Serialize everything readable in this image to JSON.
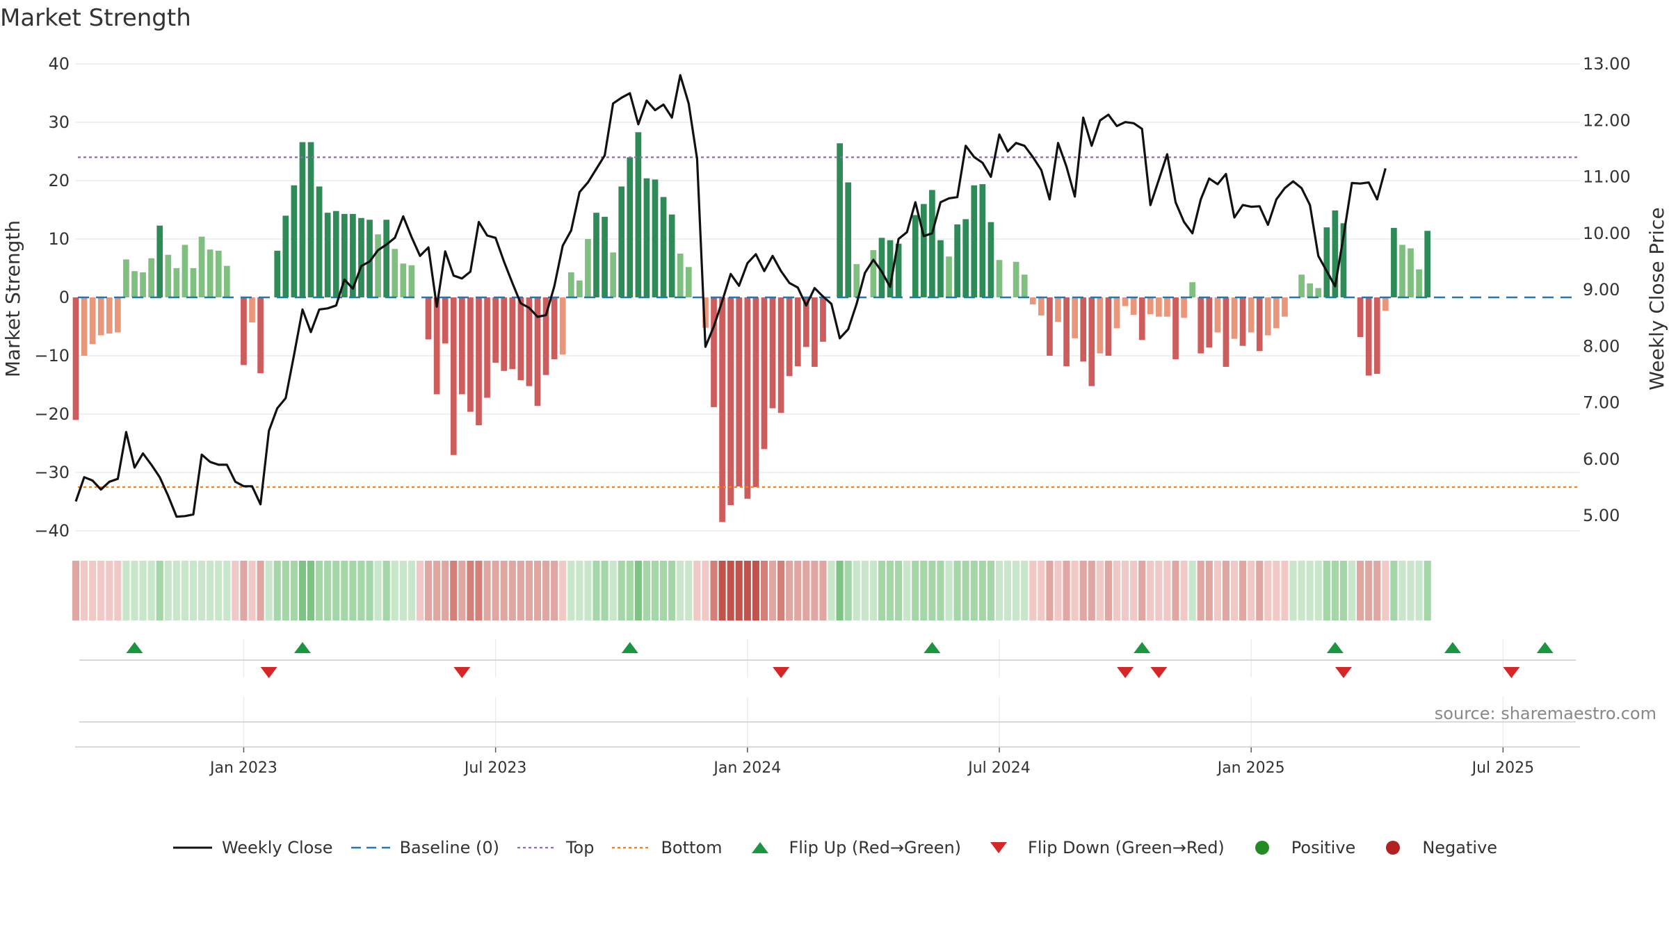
{
  "title": "Market Strength",
  "source": "source: sharemaestro.com",
  "colors": {
    "close": "#111111",
    "baseline": "#1f77b4",
    "top": "#9467bd",
    "bottom": "#ff7f0e",
    "strong_green": "#2e8b57",
    "light_green": "#7fbf7f",
    "strong_red": "#cd5c5c",
    "light_red": "#e9967a",
    "flip_up": "#1a9641",
    "flip_down": "#d62728",
    "positive": "#228b22",
    "negative": "#b22222"
  },
  "legend": [
    {
      "label": "Weekly Close",
      "kind": "line"
    },
    {
      "label": "Baseline (0)",
      "kind": "dash"
    },
    {
      "label": "Top",
      "kind": "dotted-purple"
    },
    {
      "label": "Bottom",
      "kind": "dotted-orange"
    },
    {
      "label": "Flip Up (Red→Green)",
      "kind": "tri-up"
    },
    {
      "label": "Flip Down (Green→Red)",
      "kind": "tri-down"
    },
    {
      "label": "Positive",
      "kind": "dot-green"
    },
    {
      "label": "Negative",
      "kind": "dot-red"
    }
  ],
  "chart_data": {
    "type": "bar",
    "title": "Market Strength",
    "ylabel": "Market Strength",
    "y2label": "Weekly Close Price",
    "ylim": [
      -40,
      40
    ],
    "y2lim": [
      5.0,
      13.0
    ],
    "yticks": [
      "40",
      "30",
      "20",
      "10",
      "0",
      "−10",
      "−20",
      "−30",
      "−40"
    ],
    "y2ticks": [
      "13.00",
      "12.00",
      "11.00",
      "10.00",
      "9.00",
      "8.00",
      "7.00",
      "6.00",
      "5.00"
    ],
    "xticks": [
      "Jan 2023",
      "Jul 2023",
      "Jan 2024",
      "Jul 2024",
      "Jan 2025",
      "Jul 2025"
    ],
    "xtick_weeks": [
      20,
      50,
      80,
      110,
      140,
      170
    ],
    "weeks": 180,
    "top_line": 24,
    "bottom_line": -32.5,
    "baseline": 0,
    "strength": [
      -21,
      -10,
      -8,
      -6.5,
      -6.2,
      -6,
      6.5,
      4.5,
      4.3,
      6.7,
      12.3,
      7.3,
      5,
      9,
      5,
      10.4,
      8.2,
      8,
      5.4,
      0,
      -11.6,
      -4.3,
      -13,
      0,
      8,
      14,
      19.2,
      26.6,
      26.6,
      19,
      14.5,
      14.8,
      14.3,
      14.3,
      13.6,
      13.3,
      10.8,
      13.3,
      8.3,
      5.8,
      5.5,
      0,
      -7.2,
      -16.6,
      -7.9,
      -27,
      -16.6,
      -19.6,
      -21.9,
      -17.2,
      -11.2,
      -12.6,
      -12.3,
      -14.2,
      -15.2,
      -18.6,
      -13.3,
      -10.6,
      -9.8,
      4.3,
      2.9,
      10,
      14.5,
      13.8,
      7.7,
      19,
      24,
      28.3,
      20.4,
      20.2,
      17.2,
      14.2,
      7.5,
      5.2,
      0,
      -5.2,
      -18.8,
      -38.5,
      -35.6,
      -32.4,
      -34.5,
      -32.5,
      -26,
      -19,
      -19.8,
      -13.5,
      -11.8,
      -8.5,
      -11.9,
      -7.6,
      0,
      26.4,
      19.7,
      5.7,
      0,
      8.1,
      10.2,
      9.8,
      9.2,
      0,
      14.1,
      16,
      18.4,
      9.8,
      7,
      12.5,
      13.4,
      19.2,
      19.4,
      12.9,
      6.4,
      0,
      6.1,
      3.9,
      -1.2,
      -3.1,
      -10,
      -4.2,
      -11.8,
      -7,
      -11,
      -15.2,
      -9.6,
      -10,
      -5.3,
      -1.5,
      -3,
      -7.3,
      -2.9,
      -3.3,
      -3.3,
      -10.6,
      -3.5,
      2.6,
      -9.6,
      -8.6,
      -6,
      -11.9,
      -7.1,
      -8.3,
      -6,
      -9.2,
      -6.5,
      -5.3,
      -3.3,
      0,
      3.9,
      2.4,
      1.6,
      12,
      14.9,
      12.7,
      0,
      -6.8,
      -13.4,
      -13.1,
      -2.3,
      11.9,
      9,
      8.4,
      4.8,
      11.4
    ],
    "close": [
      5.25,
      5.68,
      5.62,
      5.46,
      5.6,
      5.65,
      6.48,
      5.85,
      6.1,
      5.9,
      5.68,
      5.35,
      4.98,
      4.99,
      5.02,
      6.08,
      5.95,
      5.9,
      5.9,
      5.6,
      5.52,
      5.52,
      5.2,
      6.5,
      6.9,
      7.08,
      7.85,
      8.65,
      8.25,
      8.65,
      8.67,
      8.72,
      9.18,
      9.02,
      9.42,
      9.5,
      9.7,
      9.8,
      9.92,
      10.3,
      9.93,
      9.6,
      9.75,
      8.7,
      9.68,
      9.25,
      9.2,
      9.32,
      10.2,
      9.96,
      9.92,
      9.5,
      9.12,
      8.76,
      8.68,
      8.52,
      8.55,
      9.06,
      9.78,
      10.05,
      10.73,
      10.9,
      11.14,
      11.38,
      12.3,
      12.4,
      12.48,
      11.93,
      12.35,
      12.18,
      12.28,
      12.05,
      12.8,
      12.3,
      11.32,
      7.99,
      8.35,
      8.8,
      9.28,
      9.07,
      9.47,
      9.63,
      9.33,
      9.6,
      9.33,
      9.12,
      9.04,
      8.72,
      9.03,
      8.88,
      8.75,
      8.14,
      8.3,
      8.75,
      9.3,
      9.53,
      9.32,
      9.05,
      9.9,
      10.02,
      10.55,
      9.95,
      10,
      10.55,
      10.62,
      10.64,
      11.55,
      11.35,
      11.25,
      11.0,
      11.75,
      11.45,
      11.6,
      11.55,
      11.35,
      11.12,
      10.6,
      11.6,
      11.18,
      10.65,
      12.05,
      11.55,
      12.0,
      12.1,
      11.9,
      11.97,
      11.95,
      11.85,
      10.5,
      10.95,
      11.4,
      10.55,
      10.2,
      10.0,
      10.6,
      10.97,
      10.87,
      11.05,
      10.28,
      10.5,
      10.47,
      10.48,
      10.15,
      10.6,
      10.8,
      10.92,
      10.8,
      10.5,
      9.6,
      9.33,
      9.06,
      9.95,
      10.89,
      10.88,
      10.9,
      10.6,
      11.15
    ],
    "heat": [
      -2,
      -1,
      -1,
      -1,
      -1,
      -1,
      1,
      1,
      1,
      1,
      2,
      1,
      1,
      1,
      1,
      1,
      1,
      1,
      1,
      -1,
      -2,
      -1,
      -2,
      1,
      2,
      2,
      2,
      3,
      3,
      2,
      2,
      2,
      2,
      2,
      2,
      2,
      1,
      2,
      1,
      1,
      1,
      -1,
      -2,
      -2,
      -2,
      -3,
      -2,
      -3,
      -3,
      -2,
      -2,
      -2,
      -2,
      -2,
      -2,
      -2,
      -2,
      -2,
      -1,
      1,
      1,
      1,
      2,
      2,
      1,
      2,
      2,
      3,
      2,
      2,
      2,
      2,
      1,
      1,
      -1,
      -1,
      -3,
      -4,
      -4,
      -4,
      -4,
      -4,
      -3,
      -2,
      -3,
      -2,
      -2,
      -2,
      -2,
      -2,
      1,
      3,
      2,
      1,
      1,
      1,
      2,
      2,
      2,
      1,
      2,
      2,
      2,
      2,
      1,
      2,
      2,
      2,
      2,
      2,
      1,
      1,
      1,
      1,
      -1,
      -1,
      -2,
      -1,
      -2,
      -1,
      -2,
      -2,
      -1,
      -2,
      -1,
      -1,
      -1,
      -2,
      -1,
      -1,
      -1,
      -2,
      -1,
      1,
      -2,
      -2,
      -1,
      -2,
      -1,
      -2,
      -1,
      -2,
      -1,
      -1,
      -1,
      1,
      1,
      1,
      1,
      2,
      2,
      2,
      1,
      -2,
      -2,
      -2,
      -1,
      2,
      1,
      1,
      1,
      2
    ],
    "flip_up_weeks": [
      7,
      27,
      66,
      102,
      127,
      150,
      164,
      175
    ],
    "flip_down_weeks": [
      23,
      46,
      84,
      125,
      129,
      151,
      171
    ]
  }
}
